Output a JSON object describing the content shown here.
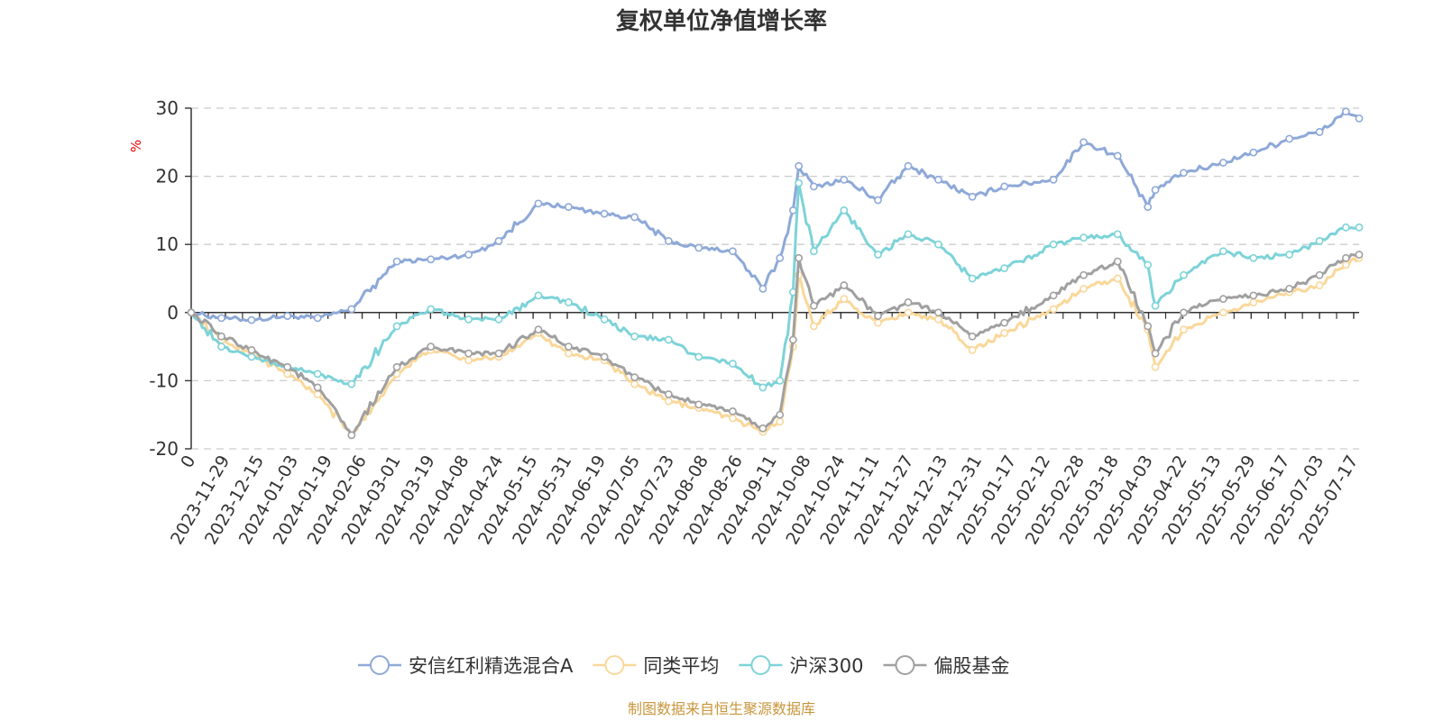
{
  "chart_data": {
    "type": "line",
    "title": "复权单位净值增长率",
    "ylabel": "%",
    "ylim": [
      -20,
      30
    ],
    "yticks": [
      -20,
      -10,
      0,
      10,
      20,
      30
    ],
    "grid": true,
    "legend_position": "bottom",
    "x_tick_labels": [
      "0",
      "2023-11-29",
      "2023-12-15",
      "2024-01-03",
      "2024-01-19",
      "2024-02-06",
      "2024-03-01",
      "2024-03-19",
      "2024-04-08",
      "2024-04-24",
      "2024-05-15",
      "2024-05-31",
      "2024-06-19",
      "2024-07-05",
      "2024-07-23",
      "2024-08-08",
      "2024-08-26",
      "2024-09-11",
      "2024-10-08",
      "2024-10-24",
      "2024-11-11",
      "2024-11-27",
      "2024-12-13",
      "2024-12-31",
      "2025-01-17",
      "2025-02-12",
      "2025-02-28",
      "2025-03-18",
      "2025-04-03",
      "2025-04-22",
      "2025-05-13",
      "2025-05-29",
      "2025-06-17",
      "2025-07-03",
      "2025-07-17"
    ],
    "x_dates": [
      "2023-11-13",
      "2023-11-29",
      "2023-12-15",
      "2024-01-03",
      "2024-01-19",
      "2024-02-06",
      "2024-03-01",
      "2024-03-19",
      "2024-04-08",
      "2024-04-24",
      "2024-05-15",
      "2024-05-31",
      "2024-06-19",
      "2024-07-05",
      "2024-07-23",
      "2024-08-08",
      "2024-08-26",
      "2024-09-11",
      "2024-09-20",
      "2024-09-27",
      "2024-09-30",
      "2024-10-08",
      "2024-10-24",
      "2024-11-11",
      "2024-11-27",
      "2024-12-13",
      "2024-12-31",
      "2025-01-17",
      "2025-02-12",
      "2025-02-28",
      "2025-03-18",
      "2025-04-03",
      "2025-04-07",
      "2025-04-22",
      "2025-05-13",
      "2025-05-29",
      "2025-06-17",
      "2025-07-03",
      "2025-07-17",
      "2025-07-24"
    ],
    "series": [
      {
        "name": "安信红利精选混合A",
        "color": "#8ea9d8",
        "values": [
          0,
          -0.8,
          -1.1,
          -0.5,
          -0.8,
          0.5,
          7.5,
          7.8,
          8.5,
          10.5,
          16,
          15.5,
          14.5,
          14,
          10.5,
          9.5,
          9.0,
          3.5,
          8,
          15,
          21.5,
          18.5,
          19.5,
          16.5,
          21.5,
          19.5,
          17,
          18.5,
          19.5,
          25,
          23,
          15.5,
          18,
          20.5,
          22,
          23.5,
          25.5,
          26.5,
          29.5,
          28.5
        ]
      },
      {
        "name": "同类平均",
        "color": "#fad79a",
        "values": [
          0,
          -4,
          -6,
          -9,
          -12,
          -18,
          -9,
          -5.5,
          -7,
          -6.5,
          -3,
          -6,
          -7,
          -10.5,
          -13,
          -14,
          -15.5,
          -17.5,
          -16,
          -5,
          5.5,
          -2,
          2,
          -1.5,
          0,
          -1,
          -5.5,
          -3,
          0.5,
          3.5,
          5,
          -2.5,
          -8,
          -2.5,
          0,
          1.5,
          3,
          4,
          7,
          8
        ]
      },
      {
        "name": "沪深300",
        "color": "#7dd3d8",
        "values": [
          0,
          -5,
          -6.5,
          -8,
          -9,
          -10.5,
          -2,
          0.5,
          -1,
          -1,
          2.5,
          1.5,
          -1,
          -3.5,
          -4,
          -6.5,
          -7.5,
          -11,
          -10,
          3,
          19,
          9,
          15,
          8.5,
          11.5,
          10,
          5,
          6.5,
          10,
          11,
          11.5,
          7,
          1,
          5.5,
          9,
          8,
          8.5,
          10.5,
          12.5,
          12.5
        ]
      },
      {
        "name": "偏股基金",
        "color": "#a0a0a0",
        "values": [
          0,
          -3.5,
          -5.5,
          -8,
          -11,
          -18,
          -8,
          -5,
          -6,
          -6,
          -2.5,
          -5,
          -6.5,
          -9.5,
          -12,
          -13.5,
          -14.5,
          -17,
          -15,
          -4,
          8,
          1,
          4,
          -0.5,
          1.5,
          0,
          -3.5,
          -1.5,
          2.5,
          5.5,
          7.5,
          -2,
          -6,
          0,
          2,
          2.5,
          3.5,
          5.5,
          8,
          8.5
        ]
      }
    ],
    "x_tick_rotation": -60
  },
  "source_note": "制图数据来自恒生聚源数据库"
}
